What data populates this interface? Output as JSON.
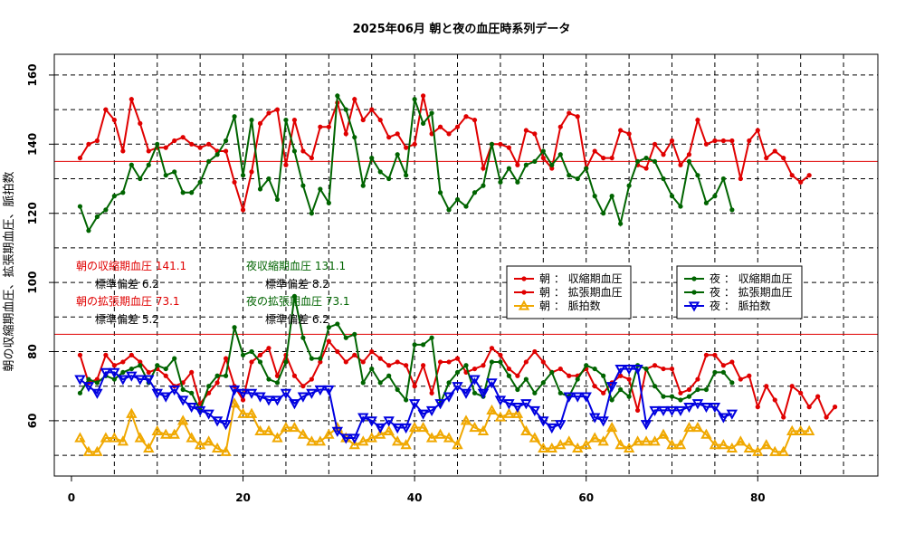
{
  "chart_data": {
    "type": "line",
    "title": "2025年06月 朝と夜の血圧時系列データ",
    "xlabel": "",
    "ylabel": "朝の収縮期血圧、拡張期血圧、脈拍数",
    "xlim": [
      -2,
      94
    ],
    "ylim": [
      44,
      166
    ],
    "xticks": [
      0,
      20,
      40,
      60,
      80
    ],
    "yticks": [
      60,
      80,
      100,
      120,
      140,
      160
    ],
    "grid": "dashed black, x every 5, y every 10",
    "reference_lines": [
      {
        "y": 135,
        "color": "#e00000"
      },
      {
        "y": 85,
        "color": "#e00000"
      }
    ],
    "series": [
      {
        "name": "朝 ： 収縮期血圧",
        "color": "#e00000",
        "marker": "circle",
        "start_x": 1,
        "values": [
          136,
          140,
          141,
          150,
          147,
          138,
          153,
          146,
          138,
          139,
          139,
          141,
          142,
          140,
          139,
          140,
          138,
          138,
          129,
          121,
          132,
          146,
          149,
          150,
          134,
          147,
          138,
          136,
          145,
          145,
          152,
          143,
          153,
          147,
          150,
          147,
          142,
          143,
          139,
          140,
          154,
          143,
          145,
          143,
          145,
          148,
          147,
          133,
          140,
          140,
          139,
          134,
          144,
          143,
          136,
          133,
          145,
          149,
          148,
          133,
          138,
          136,
          136,
          144,
          143,
          134,
          133,
          140,
          137,
          141,
          134,
          137,
          147,
          140,
          141,
          141,
          141,
          130,
          141,
          144,
          136,
          138,
          136,
          131,
          129,
          131
        ]
      },
      {
        "name": "朝 ： 拡張期血圧",
        "color": "#e00000",
        "marker": "circle",
        "start_x": 1,
        "values": [
          79,
          71,
          72,
          79,
          76,
          77,
          79,
          77,
          74,
          75,
          73,
          70,
          71,
          74,
          65,
          68,
          71,
          78,
          70,
          66,
          77,
          79,
          81,
          73,
          79,
          73,
          70,
          72,
          77,
          83,
          80,
          77,
          79,
          77,
          80,
          78,
          76,
          77,
          76,
          70,
          76,
          68,
          77,
          77,
          78,
          74,
          75,
          76,
          81,
          79,
          75,
          73,
          77,
          80,
          77,
          74,
          75,
          73,
          73,
          75,
          70,
          68,
          71,
          73,
          72,
          63,
          75,
          76,
          75,
          75,
          68,
          69,
          72,
          79,
          79,
          76,
          77,
          72,
          73,
          64,
          70,
          66,
          61,
          70,
          68,
          64,
          67,
          61,
          64
        ]
      },
      {
        "name": "朝 ： 脈拍数",
        "color": "#f0a800",
        "marker": "triangle-up",
        "start_x": 1,
        "values": [
          55,
          51,
          51,
          55,
          55,
          54,
          62,
          55,
          52,
          57,
          56,
          56,
          60,
          55,
          53,
          54,
          52,
          51,
          65,
          62,
          62,
          57,
          57,
          55,
          58,
          58,
          56,
          54,
          54,
          56,
          58,
          55,
          53,
          54,
          55,
          56,
          57,
          54,
          53,
          58,
          58,
          55,
          56,
          55,
          53,
          60,
          58,
          57,
          63,
          61,
          62,
          62,
          57,
          55,
          52,
          52,
          53,
          54,
          52,
          53,
          55,
          54,
          58,
          53,
          52,
          54,
          54,
          54,
          56,
          53,
          53,
          58,
          58,
          56,
          53,
          53,
          52,
          54,
          52,
          51,
          53,
          51,
          51,
          57,
          57,
          57
        ]
      },
      {
        "name": "夜 ： 収縮期血圧",
        "color": "#006400",
        "marker": "circle",
        "start_x": 1,
        "values": [
          122,
          115,
          119,
          121,
          125,
          126,
          134,
          130,
          134,
          140,
          131,
          132,
          126,
          126,
          129,
          135,
          137,
          141,
          148,
          131,
          147,
          127,
          130,
          124,
          147,
          138,
          128,
          120,
          127,
          123,
          154,
          150,
          142,
          128,
          136,
          132,
          130,
          137,
          131,
          153,
          146,
          149,
          126,
          121,
          124,
          122,
          126,
          128,
          140,
          129,
          133,
          129,
          134,
          135,
          138,
          134,
          137,
          131,
          130,
          133,
          125,
          120,
          125,
          117,
          128,
          135,
          136,
          135,
          130,
          125,
          122,
          135,
          131,
          123,
          125,
          130,
          121
        ]
      },
      {
        "name": "夜 ： 拡張期血圧",
        "color": "#006400",
        "marker": "circle",
        "start_x": 1,
        "values": [
          68,
          72,
          71,
          73,
          72,
          74,
          75,
          76,
          71,
          76,
          75,
          78,
          69,
          68,
          63,
          70,
          73,
          73,
          87,
          79,
          80,
          77,
          72,
          71,
          77,
          96,
          84,
          78,
          78,
          87,
          88,
          84,
          85,
          71,
          75,
          71,
          73,
          69,
          66,
          82,
          82,
          84,
          65,
          71,
          74,
          76,
          68,
          67,
          77,
          77,
          73,
          69,
          72,
          68,
          71,
          74,
          68,
          67,
          72,
          76,
          75,
          73,
          66,
          69,
          67,
          76,
          75,
          70,
          67,
          67,
          66,
          67,
          69,
          69,
          74,
          74,
          71
        ]
      },
      {
        "name": "夜 ： 脈拍数",
        "color": "#0000e0",
        "marker": "triangle-down",
        "start_x": 1,
        "values": [
          72,
          70,
          68,
          74,
          74,
          72,
          73,
          72,
          72,
          68,
          67,
          69,
          66,
          64,
          63,
          62,
          60,
          59,
          69,
          68,
          68,
          67,
          66,
          66,
          68,
          65,
          67,
          68,
          69,
          69,
          57,
          55,
          55,
          61,
          60,
          58,
          60,
          58,
          58,
          65,
          62,
          63,
          65,
          67,
          70,
          68,
          72,
          68,
          71,
          66,
          65,
          64,
          65,
          63,
          60,
          58,
          59,
          67,
          67,
          67,
          61,
          60,
          70,
          75,
          75,
          75,
          59,
          63,
          63,
          63,
          63,
          64,
          65,
          64,
          64,
          61,
          62
        ]
      }
    ],
    "annotations": {
      "morning": {
        "sys_mean": "朝の収縮期血圧 141.1",
        "sys_sd": "標準偏差 6.2",
        "dia_mean": "朝の拡張期血圧 73.1",
        "dia_sd": "標準偏差 5.2"
      },
      "evening": {
        "sys_mean": "夜収縮期血圧 131.1",
        "sys_sd": "標準偏差 8.2",
        "dia_mean": "夜の拡張期血圧 73.1",
        "dia_sd": "標準偏差 6.2"
      }
    },
    "legend_placement": "center-right"
  }
}
